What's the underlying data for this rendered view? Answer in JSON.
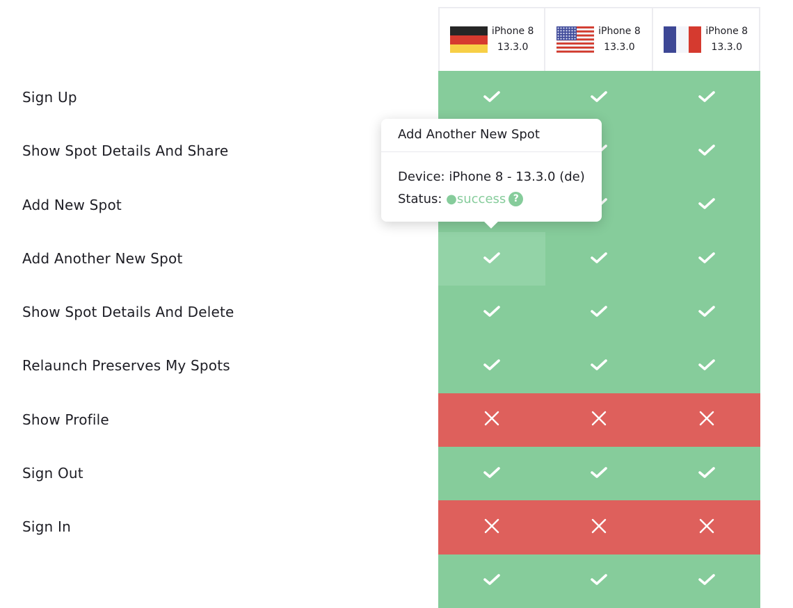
{
  "devices": [
    {
      "name": "iPhone 8",
      "version": "13.3.0",
      "flag": "germany-flag"
    },
    {
      "name": "iPhone 8",
      "version": "13.3.0",
      "flag": "usa-flag"
    },
    {
      "name": "iPhone 8",
      "version": "13.3.0",
      "flag": "france-flag"
    }
  ],
  "tests": [
    {
      "name": "Sign Up",
      "results": [
        "pass",
        "pass",
        "pass"
      ]
    },
    {
      "name": "Show Spot Details And Share",
      "results": [
        "pass",
        "pass",
        "pass"
      ]
    },
    {
      "name": "Add New Spot",
      "results": [
        "pass",
        "pass",
        "pass"
      ]
    },
    {
      "name": "Add Another New Spot",
      "results": [
        "pass",
        "pass",
        "pass"
      ]
    },
    {
      "name": "Show Spot Details And Delete",
      "results": [
        "pass",
        "pass",
        "pass"
      ]
    },
    {
      "name": "Relaunch Preserves My Spots",
      "results": [
        "pass",
        "pass",
        "pass"
      ]
    },
    {
      "name": "Show Profile",
      "results": [
        "fail",
        "fail",
        "fail"
      ]
    },
    {
      "name": "Sign Out",
      "results": [
        "pass",
        "pass",
        "pass"
      ]
    },
    {
      "name": "Sign In",
      "results": [
        "fail",
        "fail",
        "fail"
      ]
    },
    {
      "name": "",
      "results": [
        "pass",
        "pass",
        "pass"
      ]
    }
  ],
  "tooltip": {
    "title": "Add Another New Spot",
    "device_label": "Device:",
    "device_value": "iPhone 8 - 13.3.0 (de)",
    "status_label": "Status:",
    "status_value": "success",
    "help": "?"
  },
  "colors": {
    "pass": "#86cc9b",
    "fail": "#de605c"
  }
}
